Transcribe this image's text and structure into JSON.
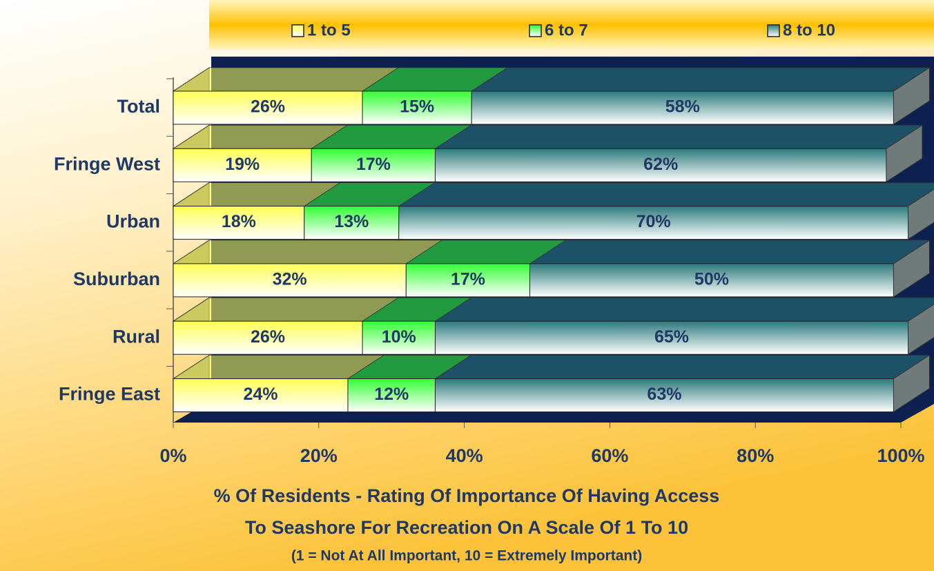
{
  "chart_data": {
    "type": "stacked_bar_3d",
    "orientation": "horizontal",
    "categories": [
      "Total",
      "Fringe West",
      "Urban",
      "Suburban",
      "Rural",
      "Fringe East"
    ],
    "series": [
      {
        "name": "1 to 5",
        "color": "#ffff55",
        "values": [
          26,
          19,
          18,
          32,
          26,
          24
        ],
        "value_labels": [
          "26%",
          "19%",
          "18%",
          "32%",
          "26%",
          "24%"
        ]
      },
      {
        "name": "6 to 7",
        "color": "#33ff33",
        "values": [
          15,
          17,
          13,
          17,
          10,
          12
        ],
        "value_labels": [
          "15%",
          "17%",
          "13%",
          "17%",
          "10%",
          "12%"
        ]
      },
      {
        "name": "8 to 10",
        "color": "#2a7a7c",
        "values": [
          58,
          62,
          70,
          50,
          65,
          63
        ],
        "value_labels": [
          "58%",
          "62%",
          "70%",
          "50%",
          "65%",
          "63%"
        ]
      }
    ],
    "xlim": [
      0,
      100
    ],
    "xticks": [
      {
        "value": 0,
        "label": "0%"
      },
      {
        "value": 20,
        "label": "20%"
      },
      {
        "value": 40,
        "label": "40%"
      },
      {
        "value": 60,
        "label": "60%"
      },
      {
        "value": 80,
        "label": "80%"
      },
      {
        "value": 100,
        "label": "100%"
      }
    ],
    "xlabel": [
      "% Of Residents - Rating Of Importance Of Having Access",
      "To Seashore For Recreation On A Scale Of 1 To 10"
    ],
    "xlabel_note": "(1 = Not At All Important, 10 = Extremely Important)",
    "legend": "top"
  }
}
